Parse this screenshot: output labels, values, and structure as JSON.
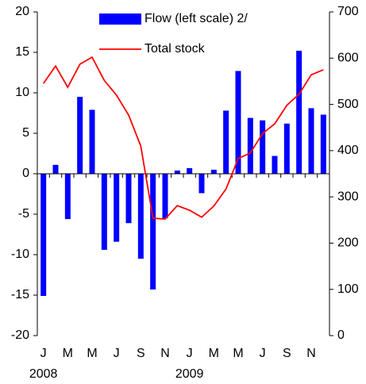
{
  "chart_data": {
    "type": "bar_line",
    "categories": [
      "J",
      null,
      "M",
      null,
      "M",
      null,
      "J",
      null,
      "S",
      null,
      "N",
      null,
      "J",
      null,
      "M",
      null,
      "M",
      null,
      "J",
      null,
      "S",
      null,
      "N",
      null
    ],
    "years": [
      "2008",
      "2009"
    ],
    "series": [
      {
        "name": "Flow (left scale) 2/",
        "type": "bar",
        "color": "#0000ff",
        "values": [
          -15.1,
          1.1,
          -5.6,
          9.5,
          7.9,
          -9.4,
          -8.4,
          -6.1,
          -10.5,
          -14.3,
          -5.5,
          0.4,
          0.7,
          -2.4,
          0.5,
          7.8,
          12.7,
          6.9,
          6.6,
          2.2,
          6.2,
          15.2,
          8.1,
          7.3
        ]
      },
      {
        "name": "Total stock",
        "type": "line",
        "axis": "y2",
        "color": "#ff0000",
        "values": [
          545,
          583,
          537,
          587,
          602,
          552,
          520,
          477,
          410,
          254,
          252,
          281,
          271,
          256,
          280,
          317,
          383,
          395,
          437,
          458,
          498,
          522,
          564,
          575
        ]
      }
    ],
    "ylim": [
      -20,
      20
    ],
    "yticks": [
      -20,
      -15,
      -10,
      -5,
      0,
      5,
      10,
      15,
      20
    ],
    "y2lim": [
      0,
      700
    ],
    "y2ticks": [
      0,
      100,
      200,
      300,
      400,
      500,
      600,
      700
    ],
    "grid": false,
    "legend": "top"
  }
}
